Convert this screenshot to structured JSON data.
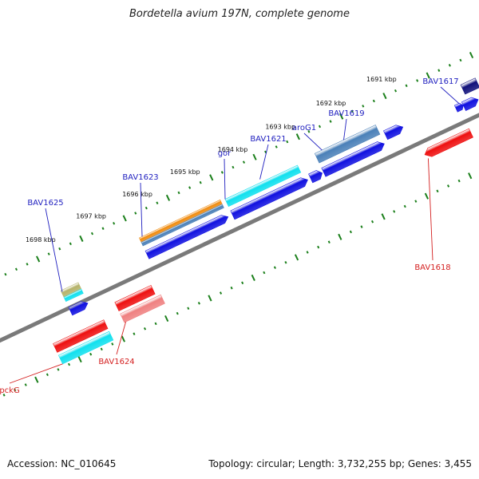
{
  "title": "Bordetella avium 197N, complete genome",
  "footer": {
    "accession": "Accession: NC_010645",
    "topology": "Topology: circular; Length: 3,732,255 bp; Genes: 3,455"
  },
  "colors": {
    "backbone": "#7a7a7a",
    "tick": "#1a7f1a",
    "label_forward": "#1f1fbf",
    "label_reverse": "#d42020",
    "blue": "#1010e0",
    "cyan": "#10e0ee",
    "red": "#ee1010",
    "salmon": "#ef8080",
    "orange": "#f08c10",
    "steel": "#4a80b8",
    "khaki": "#b5b36a",
    "navy": "#10107a"
  },
  "ruler_labels": [
    "1698 kbp",
    "1697 kbp",
    "1696 kbp",
    "1695 kbp",
    "1694 kbp",
    "1693 kbp",
    "1692 kbp",
    "1691 kbp"
  ],
  "gene_labels": [
    {
      "text": "BAV1625",
      "strand": "forward"
    },
    {
      "text": "BAV1623",
      "strand": "forward"
    },
    {
      "text": "gor",
      "strand": "forward"
    },
    {
      "text": "BAV1621",
      "strand": "forward"
    },
    {
      "text": "aroG1",
      "strand": "forward"
    },
    {
      "text": "BAV1619",
      "strand": "forward"
    },
    {
      "text": "BAV1617",
      "strand": "forward"
    },
    {
      "text": "pckG",
      "strand": "reverse"
    },
    {
      "text": "BAV1624",
      "strand": "reverse"
    },
    {
      "text": "BAV1618",
      "strand": "reverse"
    }
  ]
}
